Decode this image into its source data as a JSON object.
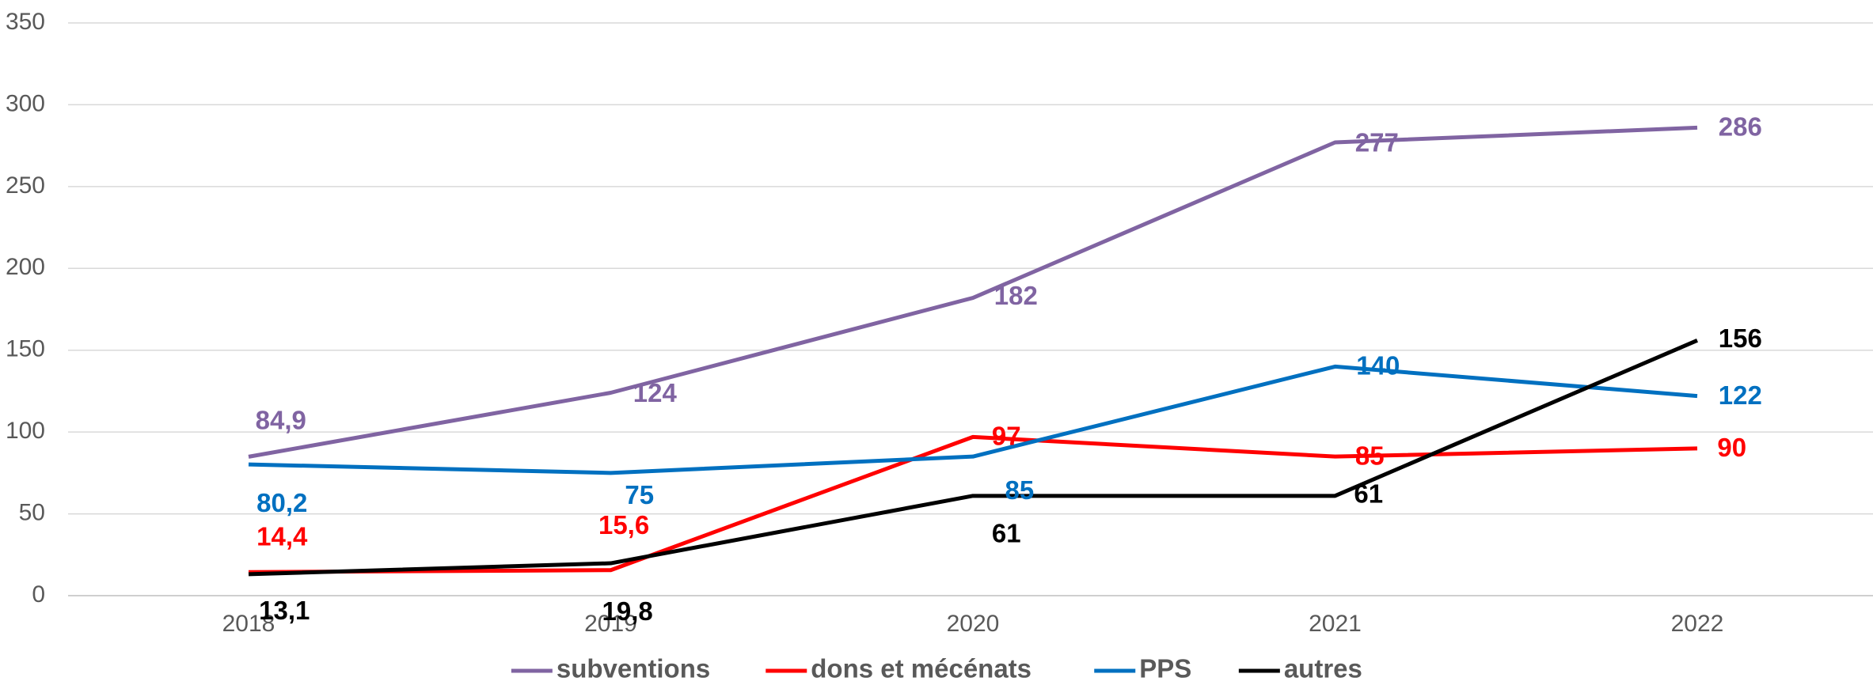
{
  "chart_data": {
    "type": "line",
    "categories": [
      "2018",
      "2019",
      "2020",
      "2021",
      "2022"
    ],
    "series": [
      {
        "name": "subventions",
        "color": "#8064a2",
        "values": [
          84.9,
          124,
          182,
          277,
          286
        ],
        "value_labels": [
          "84,9",
          "124",
          "182",
          "277",
          "286"
        ]
      },
      {
        "name": "dons et mécénats",
        "color": "#ff0000",
        "values": [
          14.4,
          15.6,
          97,
          85,
          90
        ],
        "value_labels": [
          "14,4",
          "15,6",
          "97",
          "85",
          "90"
        ]
      },
      {
        "name": "PPS",
        "color": "#0070c0",
        "values": [
          80.2,
          75,
          85,
          140,
          122
        ],
        "value_labels": [
          "80,2",
          "75",
          "85",
          "140",
          "122"
        ]
      },
      {
        "name": "autres",
        "color": "#000000",
        "values": [
          13.1,
          19.8,
          61,
          61,
          156
        ],
        "value_labels": [
          "13,1",
          "19,8",
          "61",
          "61",
          "156"
        ]
      }
    ],
    "ylim": [
      0,
      350
    ],
    "yticks": [
      0,
      50,
      100,
      150,
      200,
      250,
      300,
      350
    ],
    "grid": true,
    "legend": "bottom"
  }
}
